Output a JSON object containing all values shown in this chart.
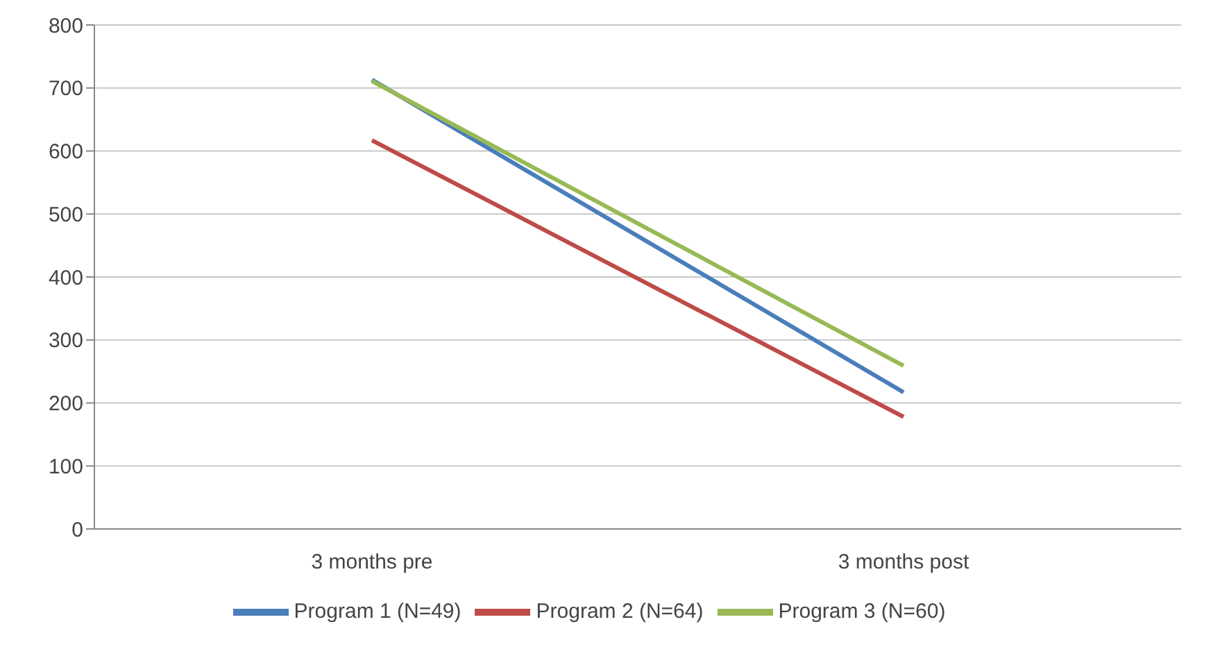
{
  "chart_data": {
    "type": "line",
    "categories": [
      "3 months pre",
      "3 months post"
    ],
    "series": [
      {
        "name": "Program 1 (N=49)",
        "color": "#4a7ebb",
        "values": [
          713,
          217
        ]
      },
      {
        "name": "Program 2 (N=64)",
        "color": "#be4b48",
        "values": [
          617,
          178
        ]
      },
      {
        "name": "Program 3 (N=60)",
        "color": "#98b954",
        "values": [
          711,
          259
        ]
      }
    ],
    "ylim": [
      0,
      800
    ],
    "yticks": [
      0,
      100,
      200,
      300,
      400,
      500,
      600,
      700,
      800
    ],
    "grid": "y",
    "legend": "bottom",
    "marker": "none",
    "line_style": "solid"
  }
}
